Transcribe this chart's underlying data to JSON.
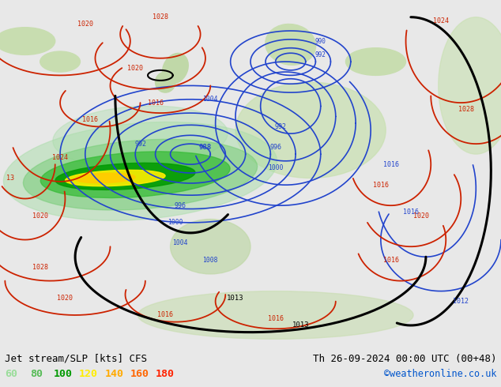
{
  "title_left": "Jet stream/SLP [kts] CFS",
  "title_right": "Th 26-09-2024 00:00 UTC (00+48)",
  "credit": "©weatheronline.co.uk",
  "legend_values": [
    "60",
    "80",
    "100",
    "120",
    "140",
    "160",
    "180"
  ],
  "legend_colors": [
    "#99dd99",
    "#55bb55",
    "#009900",
    "#ffee00",
    "#ffaa00",
    "#ff6600",
    "#ff2200"
  ],
  "map_bg": "#f0ece8",
  "land_light": "#d8edc8",
  "land_green": "#c0e0a0",
  "bottom_bg": "#e8e8e8",
  "contour_blue": "#2244cc",
  "contour_red": "#cc2200",
  "contour_black": "#000000",
  "figwidth": 6.34,
  "figheight": 4.9,
  "dpi": 100,
  "jet_colors": [
    "#aaddaa",
    "#77cc77",
    "#33aa33",
    "#009900",
    "#ffee00",
    "#ffcc00",
    "#ffaa00"
  ],
  "jet_alphas": [
    0.45,
    0.55,
    0.65,
    0.8,
    0.9,
    0.9,
    0.9
  ]
}
